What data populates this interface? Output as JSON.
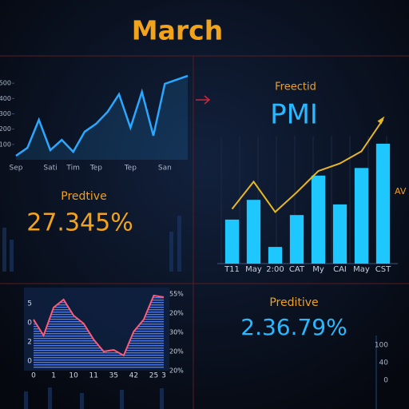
{
  "header": {
    "title": "March"
  },
  "kpis": [
    {
      "label": "Predtive",
      "value": "27.345%"
    },
    {
      "label": "Preditive",
      "value": "2.36.79%"
    }
  ],
  "chart_data": [
    {
      "type": "line",
      "color": "#2aa8ff",
      "categories": [
        "Sep",
        null,
        null,
        "Sati",
        null,
        "Tim",
        null,
        "Tep",
        null,
        null,
        "Tep",
        null,
        null,
        "San",
        null,
        null
      ],
      "values": [
        26,
        78,
        261,
        63,
        130,
        52,
        183,
        235,
        313,
        428,
        209,
        443,
        157,
        496,
        522,
        548
      ],
      "ylim": [
        0,
        600
      ],
      "yticks": [
        100,
        200,
        300,
        400,
        500
      ]
    },
    {
      "type": "combo",
      "title": "PMI",
      "subtitle": "Freectid",
      "annotation": "AV",
      "categories": [
        "T11",
        "May",
        "2:00",
        "CAT",
        "My",
        "CAI",
        "May",
        "CST"
      ],
      "ylim": [
        0,
        100
      ],
      "series": [
        {
          "type": "bar",
          "color": "#1ec8ff",
          "values": [
            29,
            42,
            11,
            32,
            58,
            39,
            63,
            79
          ]
        },
        {
          "type": "line",
          "color": "#e8b820",
          "values": [
            36,
            54,
            34,
            47,
            61,
            66,
            74,
            95
          ]
        }
      ]
    },
    {
      "type": "area",
      "color": "#ff5a78",
      "fill": "#3a6ad8",
      "categories": [
        "0",
        null,
        "1",
        null,
        "10",
        null,
        "11",
        null,
        "35",
        null,
        "42",
        null,
        "25",
        "3"
      ],
      "values": [
        62,
        42,
        77,
        87,
        67,
        57,
        37,
        22,
        24,
        17,
        47,
        62,
        92,
        90
      ],
      "ylim": [
        0,
        100
      ],
      "left_labels": [
        "5",
        "0",
        "2",
        "0"
      ],
      "right_labels": [
        "55%",
        "20%",
        "30%",
        "20%",
        "20%"
      ]
    }
  ],
  "side_labels": [
    "100",
    "40",
    "0"
  ]
}
